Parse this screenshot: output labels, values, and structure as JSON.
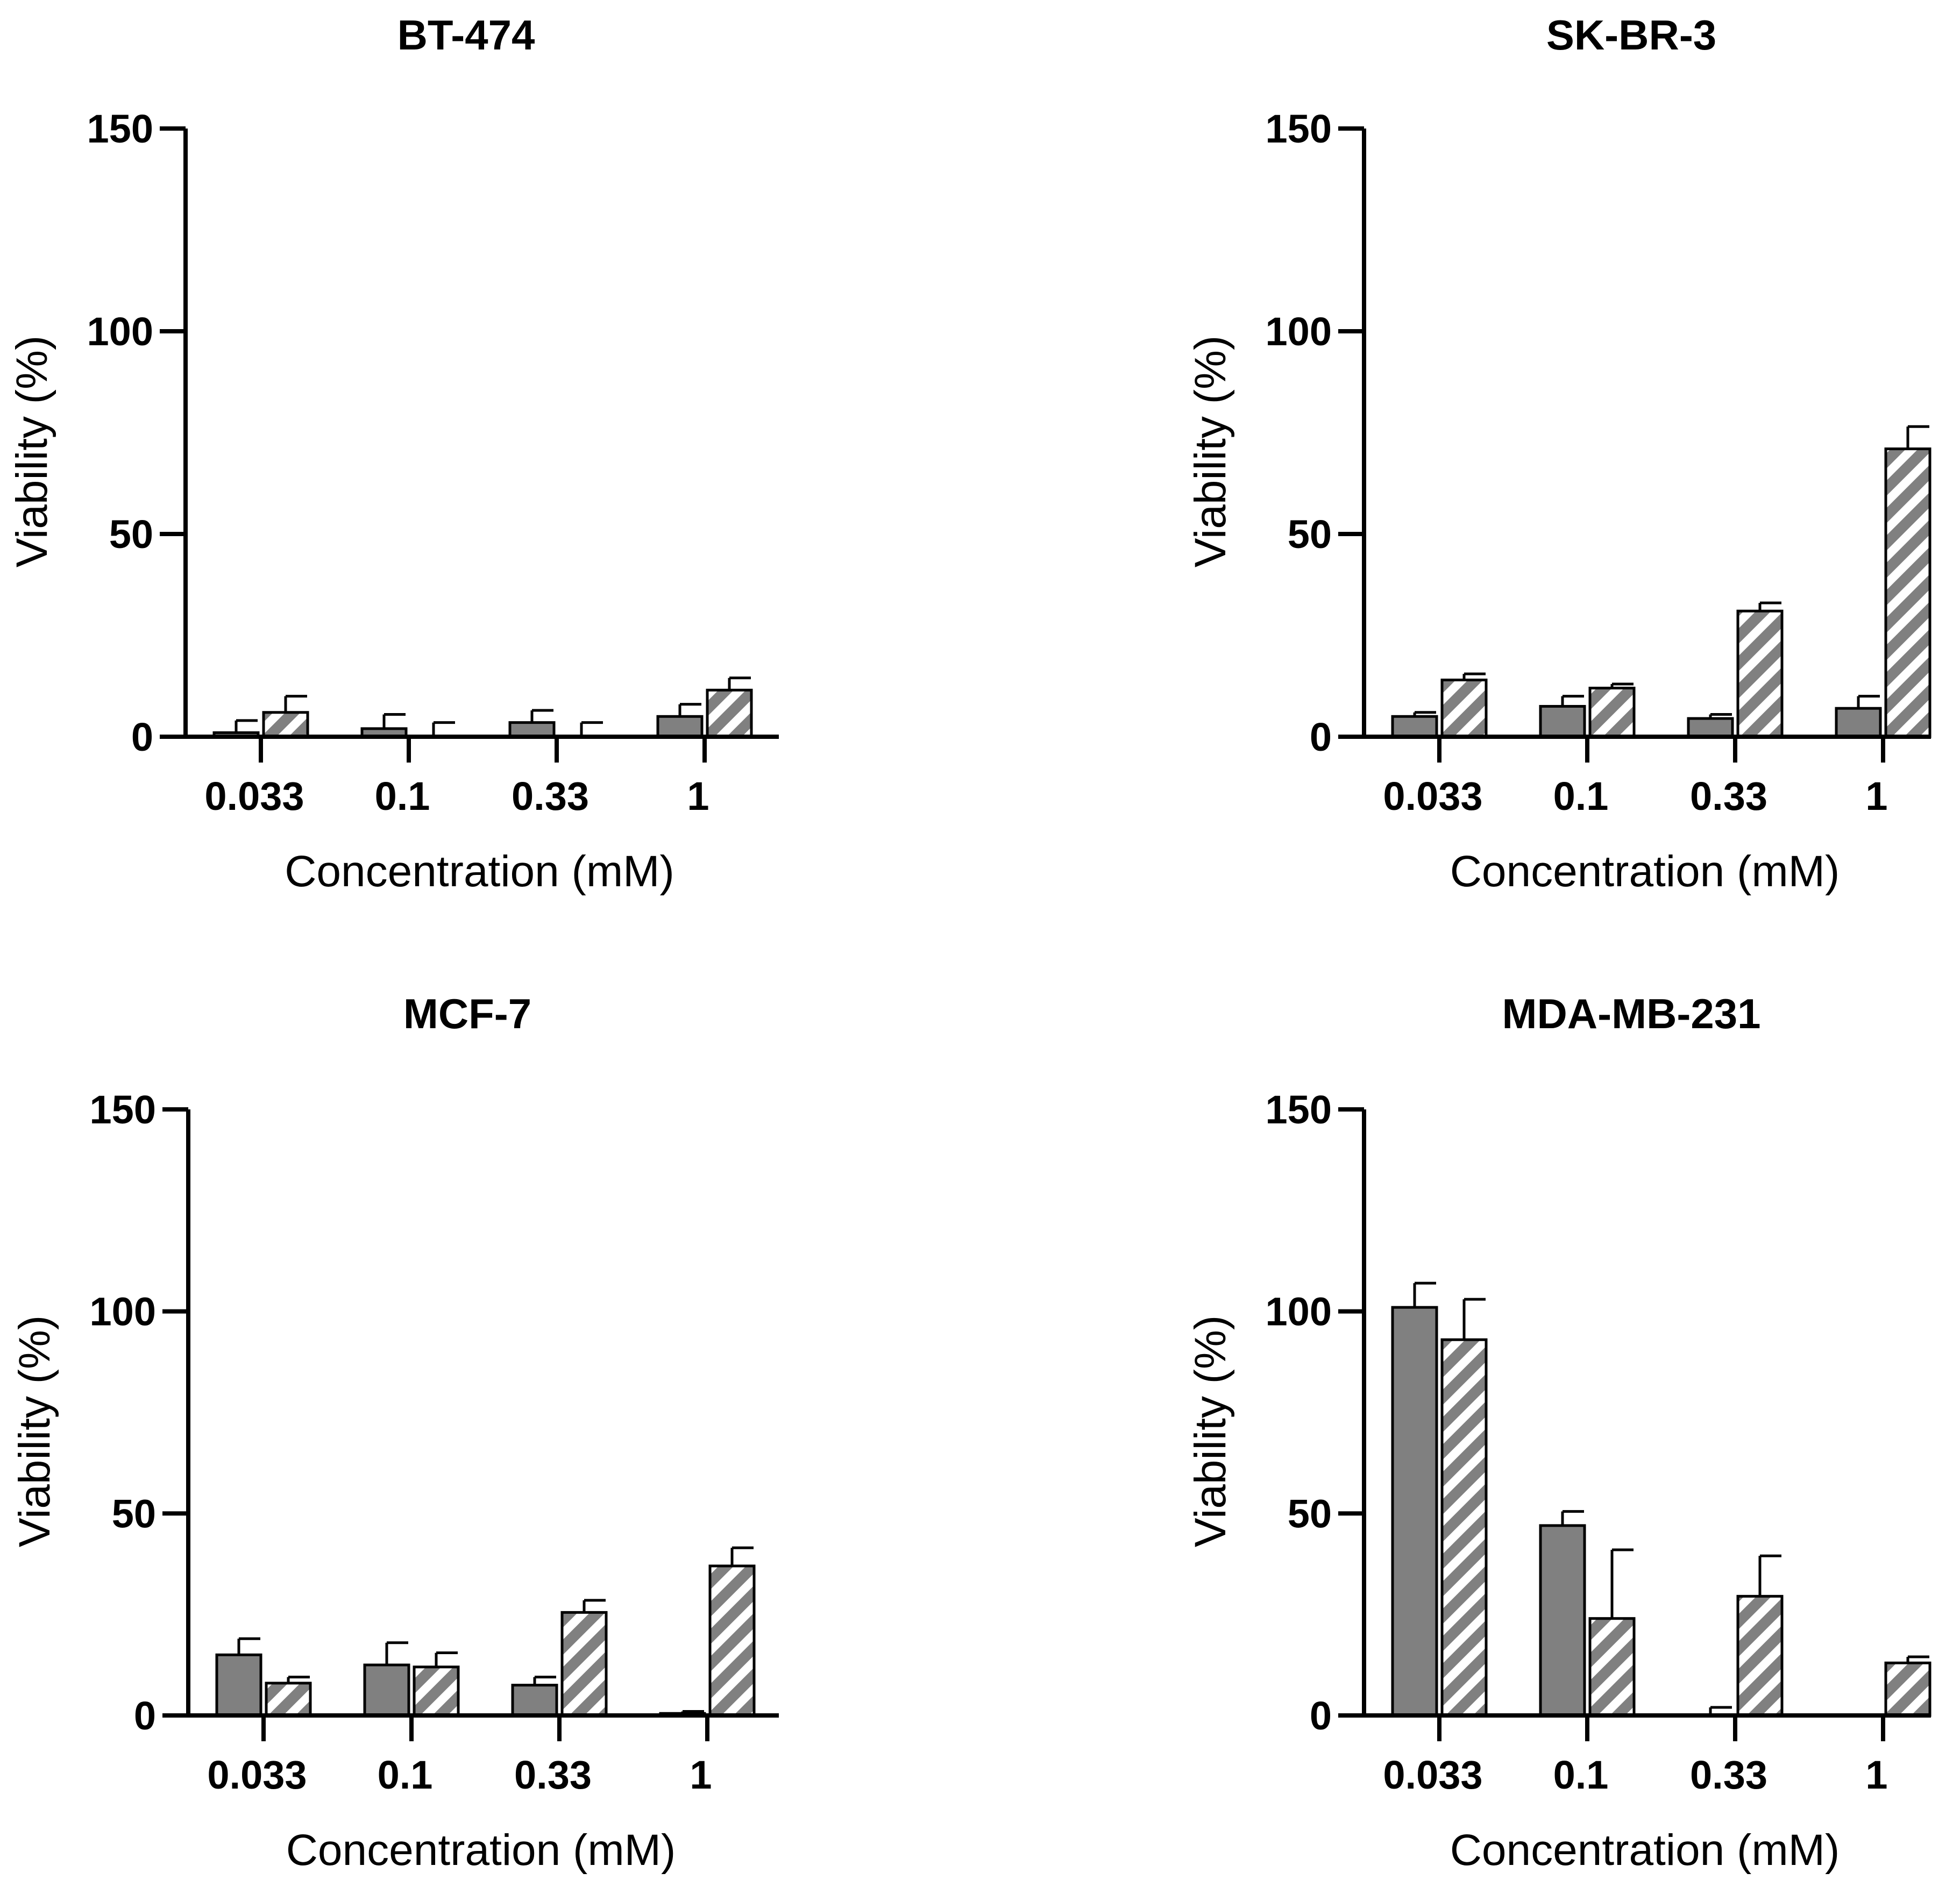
{
  "chart_data": [
    {
      "type": "bar",
      "title": "BT-474",
      "xlabel": "Concentration (mM)",
      "ylabel": "Viability (%)",
      "categories": [
        "0.033",
        "0.1",
        "0.33",
        "1"
      ],
      "ylim": [
        0,
        150
      ],
      "yticks": [
        "0",
        "50",
        "100",
        "150"
      ],
      "series": [
        {
          "name": "solid",
          "pattern": "solid",
          "values": [
            1,
            2,
            3.5,
            5
          ],
          "errors": [
            3,
            3.5,
            3,
            3
          ]
        },
        {
          "name": "hatched",
          "pattern": "hatched",
          "values": [
            6,
            0,
            0,
            11.5
          ],
          "errors": [
            4,
            3.5,
            3.5,
            3
          ]
        }
      ]
    },
    {
      "type": "bar",
      "title": "SK-BR-3",
      "xlabel": "Concentration (mM)",
      "ylabel": "Viability (%)",
      "categories": [
        "0.033",
        "0.1",
        "0.33",
        "1"
      ],
      "ylim": [
        0,
        150
      ],
      "yticks": [
        "0",
        "50",
        "100",
        "150"
      ],
      "series": [
        {
          "name": "solid",
          "pattern": "solid",
          "values": [
            5,
            7.5,
            4.5,
            7
          ],
          "errors": [
            1,
            2.5,
            1,
            3
          ]
        },
        {
          "name": "hatched",
          "pattern": "hatched",
          "values": [
            14,
            12,
            31,
            71
          ],
          "errors": [
            1.5,
            1,
            2,
            5.5
          ]
        }
      ]
    },
    {
      "type": "bar",
      "title": "MCF-7",
      "xlabel": "Concentration (mM)",
      "ylabel": "Viability (%)",
      "categories": [
        "0.033",
        "0.1",
        "0.33",
        "1"
      ],
      "ylim": [
        0,
        150
      ],
      "yticks": [
        "0",
        "50",
        "100",
        "150"
      ],
      "series": [
        {
          "name": "solid",
          "pattern": "solid",
          "values": [
            15,
            12.5,
            7.5,
            0.5
          ],
          "errors": [
            4,
            5.5,
            2,
            0.5
          ]
        },
        {
          "name": "hatched",
          "pattern": "hatched",
          "values": [
            8,
            12,
            25.5,
            37
          ],
          "errors": [
            1.5,
            3.5,
            3,
            4.5
          ]
        }
      ]
    },
    {
      "type": "bar",
      "title": "MDA-MB-231",
      "xlabel": "Concentration (mM)",
      "ylabel": "Viability (%)",
      "categories": [
        "0.033",
        "0.1",
        "0.33",
        "1"
      ],
      "ylim": [
        0,
        150
      ],
      "yticks": [
        "0",
        "50",
        "100",
        "150"
      ],
      "series": [
        {
          "name": "solid",
          "pattern": "solid",
          "values": [
            101,
            47,
            0,
            0
          ],
          "errors": [
            6,
            3.5,
            2,
            0
          ]
        },
        {
          "name": "hatched",
          "pattern": "hatched",
          "values": [
            93,
            24,
            29.5,
            13
          ],
          "errors": [
            10,
            17,
            10,
            1.5
          ]
        }
      ]
    }
  ],
  "colors": {
    "bar_fill": "#808080",
    "hatch_stripe": "#ffffff",
    "axis": "#000000",
    "background": "#ffffff"
  }
}
